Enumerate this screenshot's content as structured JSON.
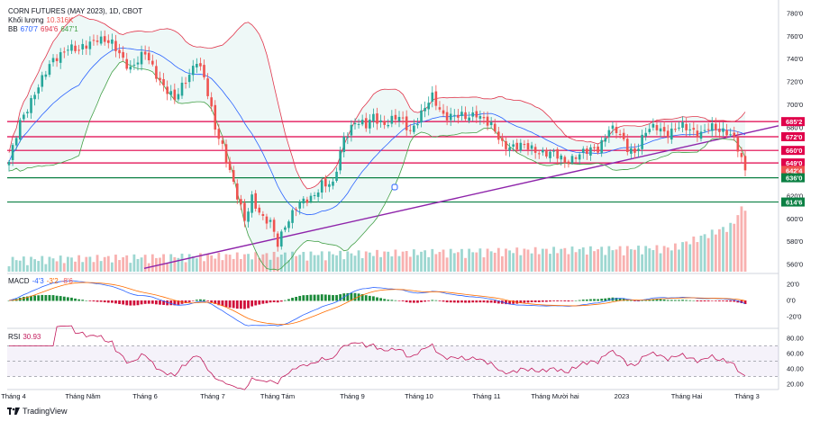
{
  "header": {
    "title": "CORN FUTURES (MAY 2023), 1D, CBOT",
    "volume_label": "Khối lượng",
    "volume_value": "10.316K",
    "bb_label": "BB",
    "bb_values": [
      "670'7",
      "694'6",
      "647'1"
    ]
  },
  "macd_legend": {
    "label": "MACD",
    "values": [
      "-4'3",
      "-3'2",
      "-8'6"
    ]
  },
  "rsi_legend": {
    "label": "RSI",
    "value": "30.93"
  },
  "brand": {
    "name": "TradingView"
  },
  "colors": {
    "up": "#26a69a",
    "down": "#ef5350",
    "bb_upper": "#e0344a",
    "bb_lower": "#43a047",
    "bb_basis": "#2962ff",
    "trendline": "#8e24aa",
    "hline": "#e0004a",
    "support": "#0b8043",
    "rsi": "#c2185b",
    "macd_line": "#2962ff",
    "signal_line": "#ff6d00"
  },
  "chart_data": {
    "type": "candlestick",
    "title": "CORN FUTURES (MAY 2023), 1D, CBOT",
    "x_labels": [
      "Tháng 4",
      "Tháng Năm",
      "Tháng 6",
      "Tháng 7",
      "Tháng Tám",
      "Tháng 9",
      "Tháng 10",
      "Tháng 11",
      "Tháng Mười hai",
      "2023",
      "Tháng Hai",
      "Tháng 3"
    ],
    "price_axis": {
      "ticks": [
        "780'0",
        "760'0",
        "740'0",
        "720'0",
        "700'0",
        "680'0",
        "660'0",
        "640'0",
        "620'0",
        "600'0",
        "580'0",
        "560'0"
      ],
      "ylim": [
        552,
        786
      ]
    },
    "price_tags": [
      {
        "label": "685'2",
        "value": 685.25,
        "color": "#e0004a"
      },
      {
        "label": "672'0",
        "value": 672,
        "color": "#e0004a"
      },
      {
        "label": "660'0",
        "value": 660,
        "color": "#e0004a"
      },
      {
        "label": "649'0",
        "value": 649,
        "color": "#e0004a"
      },
      {
        "label": "642'4",
        "value": 642.5,
        "color": "#ef5350"
      },
      {
        "label": "636'0",
        "value": 636,
        "color": "#0b8043"
      },
      {
        "label": "614'6",
        "value": 614.75,
        "color": "#0b8043"
      }
    ],
    "horizontal_lines": [
      {
        "value": 685.25,
        "color": "#e0004a"
      },
      {
        "value": 672,
        "color": "#e0004a"
      },
      {
        "value": 660,
        "color": "#e0004a"
      },
      {
        "value": 649,
        "color": "#e0004a"
      },
      {
        "value": 636,
        "color": "#0b8043"
      },
      {
        "value": 614.75,
        "color": "#0b8043"
      }
    ],
    "trendline": {
      "from": [
        0,
        530
      ],
      "to": [
        200,
        675
      ]
    },
    "close_anchors": [
      [
        0,
        650
      ],
      [
        3,
        683
      ],
      [
        7,
        712
      ],
      [
        12,
        738
      ],
      [
        16,
        752
      ],
      [
        19,
        746
      ],
      [
        24,
        760
      ],
      [
        28,
        752
      ],
      [
        33,
        733
      ],
      [
        37,
        744
      ],
      [
        41,
        722
      ],
      [
        45,
        703
      ],
      [
        48,
        722
      ],
      [
        51,
        740
      ],
      [
        53,
        722
      ],
      [
        56,
        680
      ],
      [
        58,
        665
      ],
      [
        60,
        642
      ],
      [
        62,
        618
      ],
      [
        64,
        598
      ],
      [
        66,
        620
      ],
      [
        69,
        600
      ],
      [
        71,
        595
      ],
      [
        73,
        578
      ],
      [
        75,
        596
      ],
      [
        78,
        610
      ],
      [
        82,
        618
      ],
      [
        85,
        632
      ],
      [
        88,
        628
      ],
      [
        91,
        672
      ],
      [
        94,
        686
      ],
      [
        97,
        680
      ],
      [
        99,
        690
      ],
      [
        102,
        684
      ],
      [
        106,
        688
      ],
      [
        109,
        678
      ],
      [
        112,
        692
      ],
      [
        115,
        706
      ],
      [
        118,
        692
      ],
      [
        121,
        690
      ],
      [
        124,
        688
      ],
      [
        127,
        694
      ],
      [
        131,
        680
      ],
      [
        134,
        666
      ],
      [
        137,
        664
      ],
      [
        141,
        662
      ],
      [
        144,
        660
      ],
      [
        148,
        656
      ],
      [
        151,
        650
      ],
      [
        154,
        656
      ],
      [
        157,
        658
      ],
      [
        160,
        662
      ],
      [
        163,
        680
      ],
      [
        165,
        676
      ],
      [
        168,
        662
      ],
      [
        170,
        660
      ],
      [
        173,
        676
      ],
      [
        176,
        680
      ],
      [
        179,
        676
      ],
      [
        182,
        680
      ],
      [
        185,
        678
      ],
      [
        188,
        676
      ],
      [
        190,
        680
      ],
      [
        193,
        676
      ],
      [
        195,
        678
      ],
      [
        197,
        672
      ],
      [
        198,
        662
      ],
      [
        199,
        650
      ],
      [
        200,
        642.5
      ]
    ],
    "bollinger": {
      "period": 20,
      "mult": 2
    },
    "volume_scale_max": 31000,
    "macd_axis": {
      "ticks": [
        "20'0",
        "0'0",
        "-20'0"
      ],
      "ylim": [
        -30,
        30
      ]
    },
    "rsi_axis": {
      "ticks": [
        "80.00",
        "60.00",
        "40.00",
        "20.00"
      ],
      "ylim": [
        15,
        90
      ],
      "bands": [
        70,
        30
      ]
    }
  }
}
